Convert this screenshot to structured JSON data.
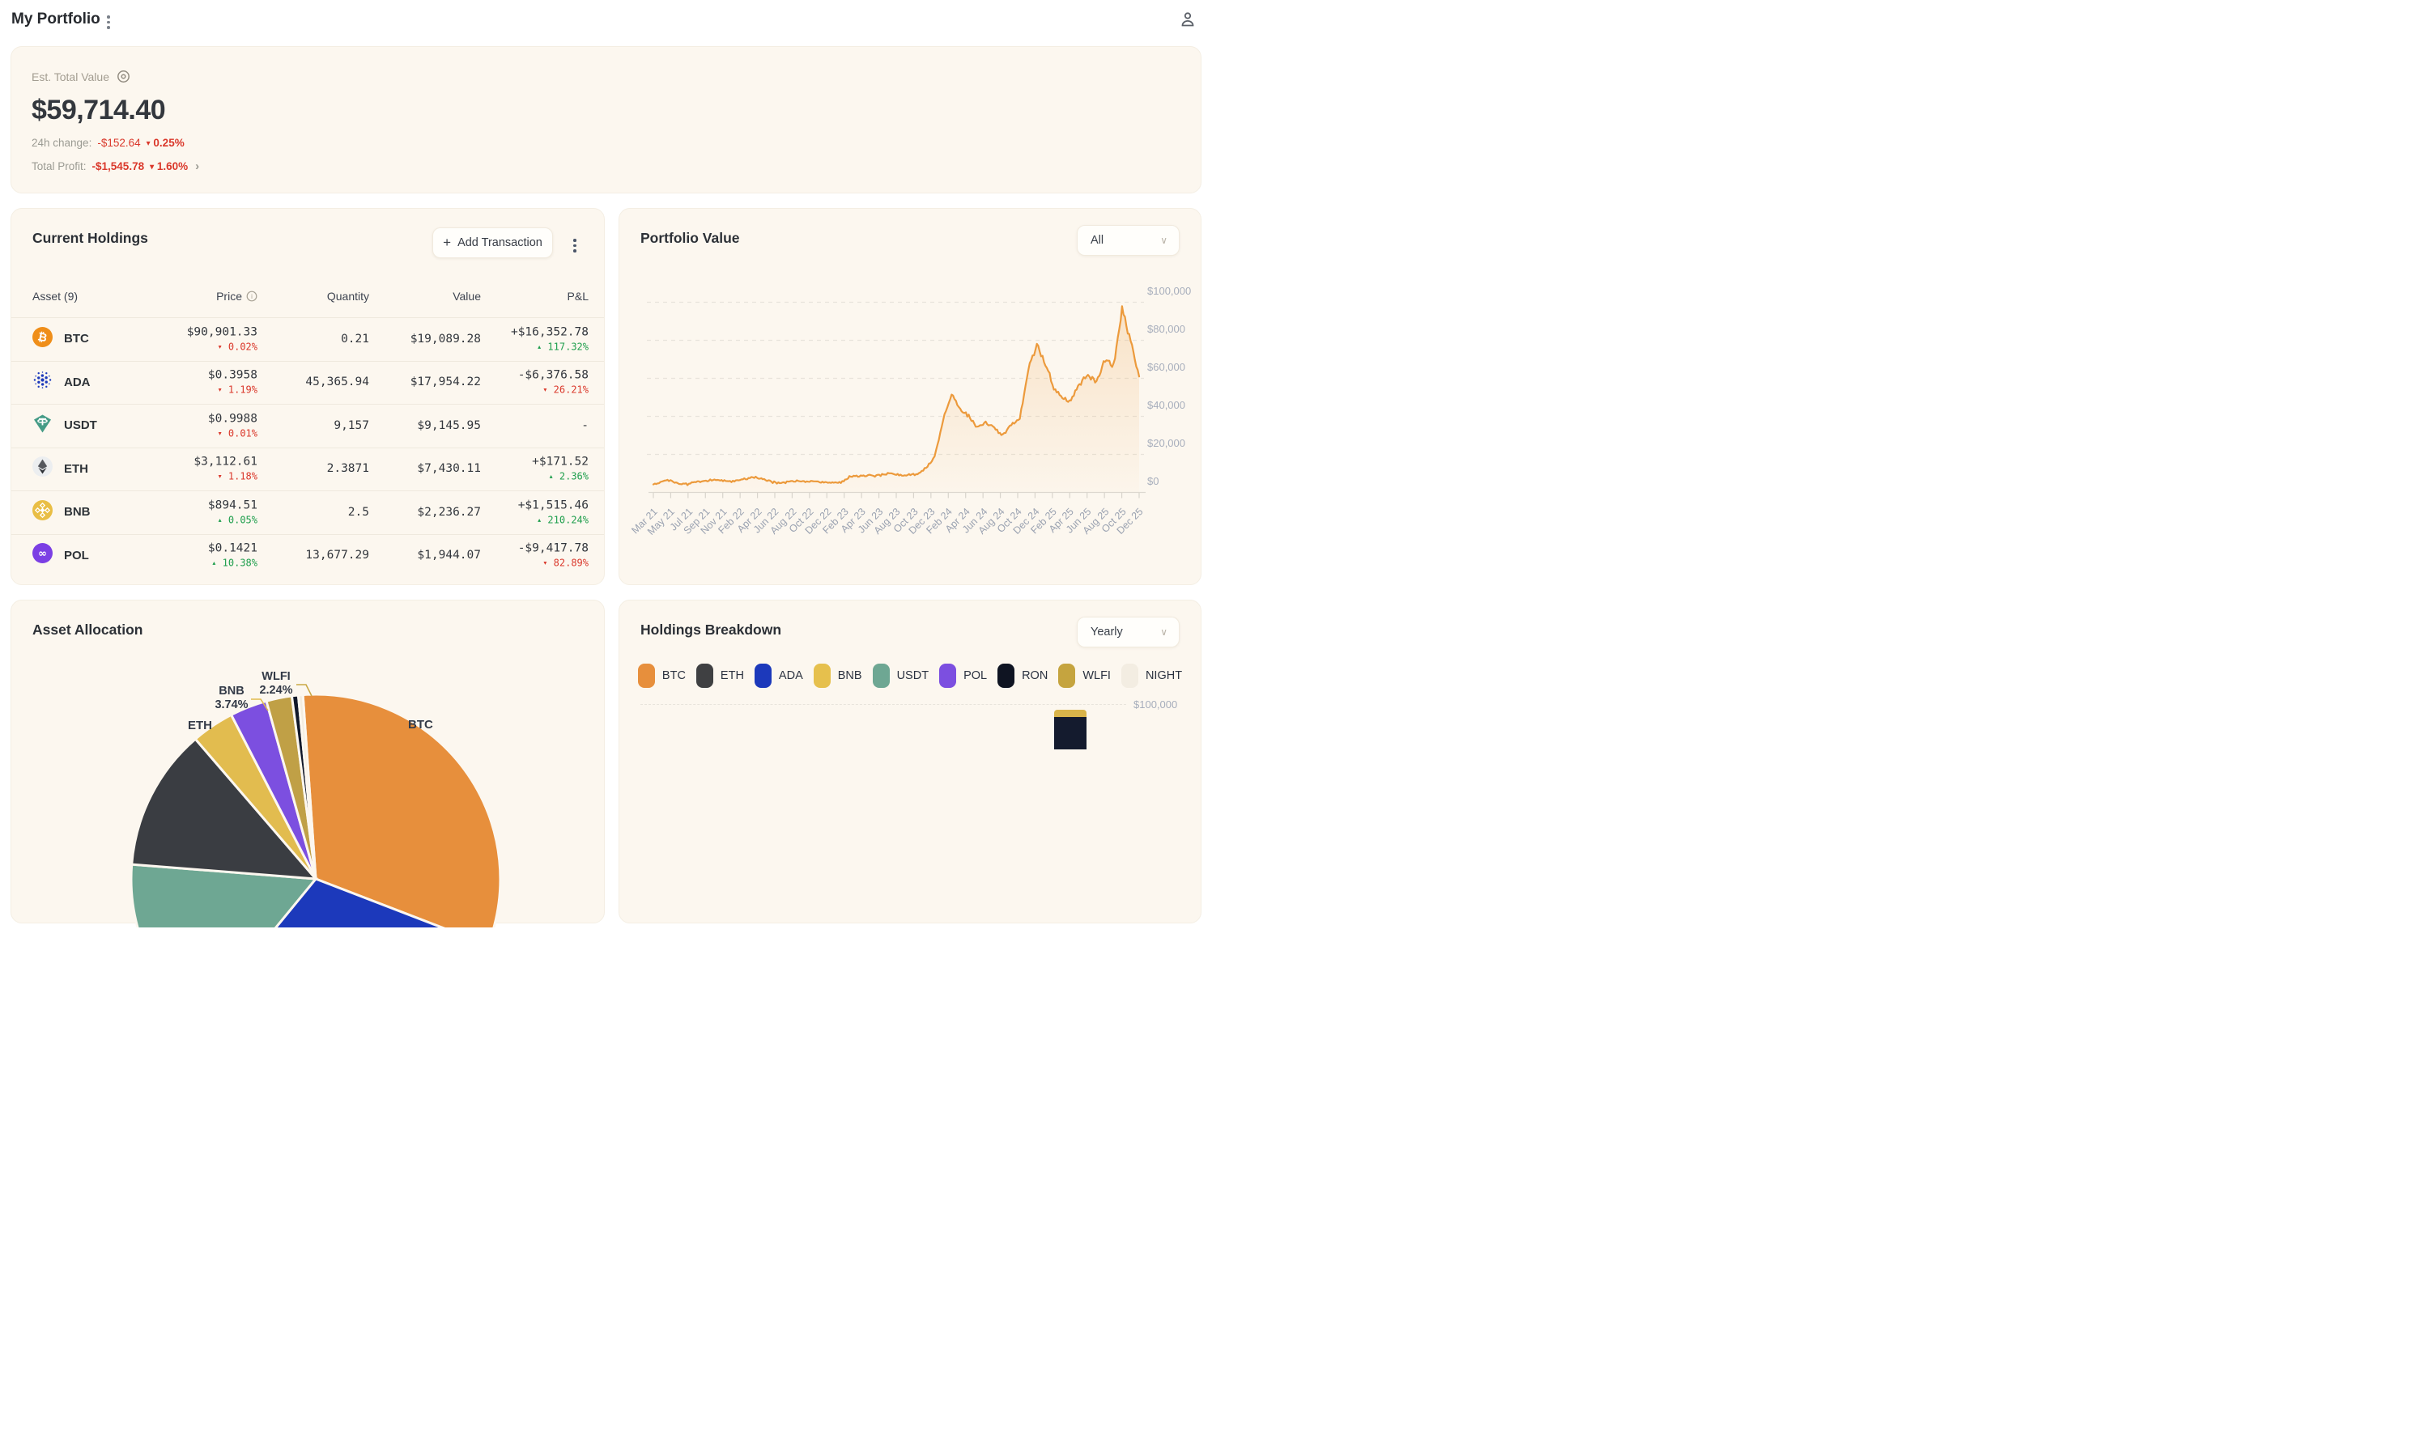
{
  "header": {
    "title": "My Portfolio"
  },
  "summary": {
    "label": "Est. Total Value",
    "total": "$59,714.40",
    "change_label": "24h change:",
    "change_value": "-$152.64",
    "change_pct": "0.25%",
    "profit_label": "Total Profit:",
    "profit_value": "-$1,545.78",
    "profit_pct": "1.60%"
  },
  "holdings": {
    "title": "Current Holdings",
    "add_button": "Add Transaction",
    "columns": {
      "asset": "Asset (9)",
      "price": "Price",
      "quantity": "Quantity",
      "value": "Value",
      "pnl": "P&L"
    },
    "rows": [
      {
        "symbol": "BTC",
        "icon": "btc",
        "price": "$90,901.33",
        "price_change": "0.02%",
        "price_dir": "down",
        "quantity": "0.21",
        "value": "$19,089.28",
        "pnl": "+$16,352.78",
        "pnl_color": "green",
        "pnl_pct": "117.32%",
        "pnl_pct_dir": "up"
      },
      {
        "symbol": "ADA",
        "icon": "ada",
        "price": "$0.3958",
        "price_change": "1.19%",
        "price_dir": "down",
        "quantity": "45,365.94",
        "value": "$17,954.22",
        "pnl": "-$6,376.58",
        "pnl_color": "red",
        "pnl_pct": "26.21%",
        "pnl_pct_dir": "down"
      },
      {
        "symbol": "USDT",
        "icon": "usdt",
        "price": "$0.9988",
        "price_change": "0.01%",
        "price_dir": "down",
        "quantity": "9,157",
        "value": "$9,145.95",
        "pnl": "-",
        "pnl_color": "none",
        "pnl_pct": "",
        "pnl_pct_dir": ""
      },
      {
        "symbol": "ETH",
        "icon": "eth",
        "price": "$3,112.61",
        "price_change": "1.18%",
        "price_dir": "down",
        "quantity": "2.3871",
        "value": "$7,430.11",
        "pnl": "+$171.52",
        "pnl_color": "green",
        "pnl_pct": "2.36%",
        "pnl_pct_dir": "up"
      },
      {
        "symbol": "BNB",
        "icon": "bnb",
        "price": "$894.51",
        "price_change": "0.05%",
        "price_dir": "up",
        "quantity": "2.5",
        "value": "$2,236.27",
        "pnl": "+$1,515.46",
        "pnl_color": "green",
        "pnl_pct": "210.24%",
        "pnl_pct_dir": "up"
      },
      {
        "symbol": "POL",
        "icon": "pol",
        "price": "$0.1421",
        "price_change": "10.38%",
        "price_dir": "up",
        "quantity": "13,677.29",
        "value": "$1,944.07",
        "pnl": "-$9,417.78",
        "pnl_color": "red",
        "pnl_pct": "82.89%",
        "pnl_pct_dir": "down"
      }
    ]
  },
  "portfolio": {
    "title": "Portfolio Value",
    "range": "All"
  },
  "allocation": {
    "title": "Asset Allocation",
    "callouts": [
      {
        "label": "WLFI",
        "pct": "2.24%"
      },
      {
        "label": "BNB",
        "pct": "3.74%"
      }
    ],
    "edge_labels": [
      "ETH",
      "BTC"
    ]
  },
  "breakdown": {
    "title": "Holdings Breakdown",
    "range": "Yearly",
    "axis_label": "$100,000",
    "legend": [
      {
        "label": "BTC",
        "color": "#E78F3C"
      },
      {
        "label": "ETH",
        "color": "#3F4042"
      },
      {
        "label": "ADA",
        "color": "#1C39BB"
      },
      {
        "label": "BNB",
        "color": "#E6C04D"
      },
      {
        "label": "USDT",
        "color": "#6EA793"
      },
      {
        "label": "POL",
        "color": "#7C4FE0"
      },
      {
        "label": "RON",
        "color": "#0F1422"
      },
      {
        "label": "WLFI",
        "color": "#C5A43F"
      },
      {
        "label": "NIGHT",
        "color": "#F3EDE2"
      }
    ]
  },
  "chart_data": [
    {
      "type": "line",
      "title": "Portfolio Value",
      "range_selected": "All",
      "x_interval": "monthly",
      "x_start": "Mar 2021",
      "x_end": "Dec 2025",
      "x_tick_labels": [
        "Mar 21",
        "May 21",
        "Jul 21",
        "Sep 21",
        "Nov 21",
        "Feb 22",
        "Apr 22",
        "Jun 22",
        "Aug 22",
        "Oct 22",
        "Dec 22",
        "Feb 23",
        "Apr 23",
        "Jun 23",
        "Aug 23",
        "Oct 23",
        "Dec 23",
        "Feb 24",
        "Apr 24",
        "Jun 24",
        "Aug 24",
        "Oct 24",
        "Dec 24",
        "Feb 25",
        "Apr 25",
        "Jun 25",
        "Aug 25",
        "Oct 25",
        "Dec 25"
      ],
      "y_tick_labels": [
        "$0",
        "$20,000",
        "$40,000",
        "$60,000",
        "$80,000",
        "$100,000"
      ],
      "ylim": [
        0,
        100000
      ],
      "grid": "dashed-horizontal",
      "legend_position": "none",
      "line_color": "#EC9A3C",
      "values_usd": [
        4200,
        5800,
        6300,
        4700,
        4300,
        5700,
        5600,
        6800,
        6400,
        5600,
        6700,
        7400,
        7900,
        7100,
        5400,
        4900,
        5600,
        6100,
        5700,
        5900,
        5100,
        5000,
        5300,
        8100,
        8600,
        9100,
        8500,
        9400,
        10300,
        8900,
        9300,
        9700,
        13000,
        18500,
        38000,
        52000,
        44000,
        40000,
        34000,
        37000,
        33500,
        30000,
        36000,
        38500,
        65000,
        77000,
        68000,
        55000,
        50000,
        48000,
        57000,
        62000,
        58000,
        70000,
        67000,
        96000,
        80000,
        61000
      ]
    },
    {
      "type": "pie",
      "title": "Asset Allocation",
      "labels_visible_on_screen": {
        "WLFI": "2.24%",
        "BNB": "3.74%"
      },
      "slices": [
        {
          "label": "BTC",
          "pct": 31.97,
          "color": "#E78F3C"
        },
        {
          "label": "ADA",
          "pct": 30.07,
          "color": "#1C39BB"
        },
        {
          "label": "USDT",
          "pct": 15.32,
          "color": "#6EA793"
        },
        {
          "label": "ETH",
          "pct": 12.44,
          "color": "#3A3D42"
        },
        {
          "label": "BNB",
          "pct": 3.74,
          "color": "#E2BC4F"
        },
        {
          "label": "POL",
          "pct": 3.26,
          "color": "#7C4FE0"
        },
        {
          "label": "WLFI",
          "pct": 2.24,
          "color": "#C0A046"
        },
        {
          "label": "RON",
          "pct": 0.56,
          "color": "#11182A"
        },
        {
          "label": "NIGHT",
          "pct": 0.4,
          "color": "#F2ECDF"
        }
      ]
    },
    {
      "type": "bar",
      "subtype": "stacked",
      "title": "Holdings Breakdown",
      "range_selected": "Yearly",
      "series_legend": [
        "BTC",
        "ETH",
        "ADA",
        "BNB",
        "USDT",
        "POL",
        "RON",
        "WLFI",
        "NIGHT"
      ],
      "y_tick_visible": "$100,000",
      "visible_fragment": {
        "bar_top_segments": [
          {
            "series": "WLFI",
            "color": "#D9B44A"
          },
          {
            "series": "RON",
            "color": "#141B2E"
          }
        ]
      }
    }
  ]
}
